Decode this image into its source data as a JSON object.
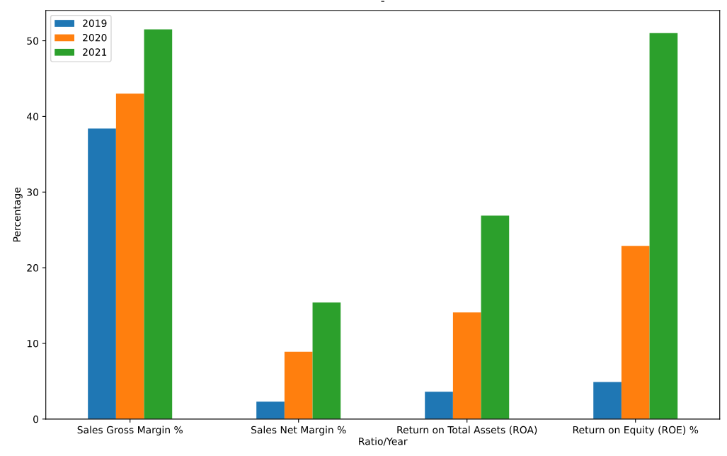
{
  "chart_data": {
    "type": "bar",
    "title": "-",
    "xlabel": "Ratio/Year",
    "ylabel": "Percentage",
    "categories": [
      "Sales Gross Margin %",
      "Sales Net Margin %",
      "Return on Total Assets (ROA)",
      "Return on Equity (ROE) %"
    ],
    "series": [
      {
        "name": "2019",
        "color": "#1f77b4",
        "values": [
          38.4,
          2.3,
          3.6,
          4.9
        ]
      },
      {
        "name": "2020",
        "color": "#ff7f0e",
        "values": [
          43.0,
          8.9,
          14.1,
          22.9
        ]
      },
      {
        "name": "2021",
        "color": "#2ca02c",
        "values": [
          51.5,
          15.4,
          26.9,
          51.0
        ]
      }
    ],
    "ylim": [
      0,
      54
    ],
    "yticks": [
      0,
      10,
      20,
      30,
      40,
      50
    ],
    "grid": false,
    "legend": "top left"
  }
}
